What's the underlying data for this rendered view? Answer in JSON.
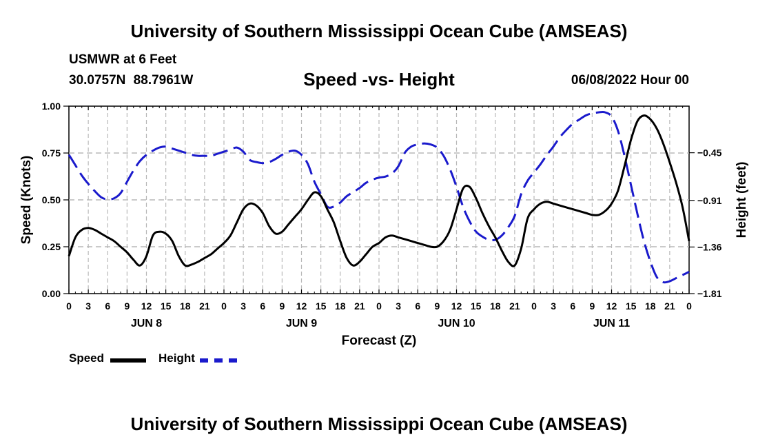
{
  "header": {
    "title": "University of Southern Mississippi Ocean Cube (AMSEAS)",
    "station": "USMWR at 6 Feet",
    "coords": "30.0757N  88.7961W",
    "subtitle": "Speed -vs- Height",
    "date": "06/08/2022 Hour 00"
  },
  "legend": {
    "speed": "Speed",
    "height": "Height"
  },
  "footer": {
    "title": "University of Southern Mississippi Ocean Cube (AMSEAS)"
  },
  "chart_data": {
    "type": "line",
    "title": "Speed -vs- Height",
    "xlabel": "Forecast (Z)",
    "ylabel": "Speed (Knots)",
    "y2label": "Height (feet)",
    "xlim": [
      0,
      96
    ],
    "ylim": [
      0,
      1
    ],
    "y2lim": [
      -1.81,
      -0.0
    ],
    "grid": true,
    "x_tick_labels": [
      "0",
      "3",
      "6",
      "9",
      "12",
      "15",
      "18",
      "21",
      "0",
      "3",
      "6",
      "9",
      "12",
      "15",
      "18",
      "21",
      "0",
      "3",
      "6",
      "9",
      "12",
      "15",
      "18",
      "21",
      "0",
      "3",
      "6",
      "9",
      "12",
      "15",
      "18",
      "21",
      "0"
    ],
    "day_labels": [
      "JUN 8",
      "JUN 9",
      "JUN 10",
      "JUN 11"
    ],
    "y_ticks": [
      0.0,
      0.25,
      0.5,
      0.75,
      1.0
    ],
    "y_tick_labels": [
      "0.00",
      "0.25",
      "0.50",
      "0.75",
      "1.00"
    ],
    "y2_ticks": [
      -1.81,
      -1.36,
      -0.91,
      -0.45
    ],
    "y2_tick_labels": [
      "−1.81",
      "−1.36",
      "−0.91",
      "−0.45"
    ],
    "series": [
      {
        "name": "Speed",
        "axis": "left",
        "color": "#000000",
        "dashed": false,
        "x": [
          0,
          1,
          2,
          3,
          4,
          5,
          6,
          7,
          8,
          9,
          10,
          11,
          12,
          13,
          14,
          15,
          16,
          17,
          18,
          19,
          20,
          21,
          22,
          23,
          24,
          25,
          26,
          27,
          28,
          29,
          30,
          31,
          32,
          33,
          34,
          35,
          36,
          37,
          38,
          39,
          40,
          41,
          42,
          43,
          44,
          45,
          46,
          47,
          48,
          49,
          50,
          51,
          52,
          53,
          54,
          55,
          56,
          57,
          58,
          59,
          60,
          61,
          62,
          63,
          64,
          65,
          66,
          67,
          68,
          69,
          70,
          71,
          72,
          73,
          74,
          75,
          76,
          77,
          78,
          79,
          80,
          81,
          82,
          83,
          84,
          85,
          86,
          87,
          88,
          89,
          90,
          91,
          92,
          93,
          94,
          95,
          96
        ],
        "values": [
          0.2,
          0.3,
          0.34,
          0.35,
          0.34,
          0.32,
          0.3,
          0.28,
          0.25,
          0.22,
          0.18,
          0.15,
          0.2,
          0.31,
          0.33,
          0.32,
          0.28,
          0.2,
          0.15,
          0.155,
          0.17,
          0.19,
          0.21,
          0.24,
          0.27,
          0.31,
          0.38,
          0.45,
          0.48,
          0.47,
          0.43,
          0.36,
          0.32,
          0.33,
          0.37,
          0.41,
          0.45,
          0.5,
          0.54,
          0.52,
          0.45,
          0.38,
          0.28,
          0.19,
          0.15,
          0.17,
          0.21,
          0.25,
          0.27,
          0.3,
          0.31,
          0.3,
          0.29,
          0.28,
          0.27,
          0.26,
          0.25,
          0.25,
          0.28,
          0.34,
          0.45,
          0.56,
          0.57,
          0.51,
          0.43,
          0.36,
          0.3,
          0.23,
          0.17,
          0.15,
          0.24,
          0.4,
          0.45,
          0.48,
          0.49,
          0.48,
          0.47,
          0.46,
          0.45,
          0.44,
          0.43,
          0.42,
          0.42,
          0.44,
          0.48,
          0.55,
          0.68,
          0.82,
          0.92,
          0.95,
          0.93,
          0.88,
          0.8,
          0.7,
          0.59,
          0.46,
          0.28
        ]
      },
      {
        "name": "Height",
        "axis": "right",
        "color": "#1a1acc",
        "dashed": true,
        "x": [
          0,
          1,
          2,
          3,
          4,
          5,
          6,
          7,
          8,
          9,
          10,
          11,
          12,
          13,
          14,
          15,
          16,
          17,
          18,
          19,
          20,
          21,
          22,
          23,
          24,
          25,
          26,
          27,
          28,
          29,
          30,
          31,
          32,
          33,
          34,
          35,
          36,
          37,
          38,
          39,
          40,
          41,
          42,
          43,
          44,
          45,
          46,
          47,
          48,
          49,
          50,
          51,
          52,
          53,
          54,
          55,
          56,
          57,
          58,
          59,
          60,
          61,
          62,
          63,
          64,
          65,
          66,
          67,
          68,
          69,
          70,
          71,
          72,
          73,
          74,
          75,
          76,
          77,
          78,
          79,
          80,
          81,
          82,
          83,
          84,
          85,
          86,
          87,
          88,
          89,
          90,
          91,
          92,
          93,
          94,
          95,
          96
        ],
        "values": [
          -0.47,
          -0.57,
          -0.67,
          -0.75,
          -0.82,
          -0.88,
          -0.9,
          -0.89,
          -0.84,
          -0.73,
          -0.62,
          -0.53,
          -0.47,
          -0.43,
          -0.4,
          -0.39,
          -0.41,
          -0.43,
          -0.45,
          -0.47,
          -0.48,
          -0.48,
          -0.48,
          -0.46,
          -0.44,
          -0.42,
          -0.4,
          -0.44,
          -0.52,
          -0.54,
          -0.55,
          -0.54,
          -0.51,
          -0.47,
          -0.44,
          -0.43,
          -0.47,
          -0.56,
          -0.73,
          -0.85,
          -0.97,
          -0.97,
          -0.93,
          -0.87,
          -0.83,
          -0.79,
          -0.74,
          -0.71,
          -0.69,
          -0.68,
          -0.65,
          -0.58,
          -0.45,
          -0.39,
          -0.37,
          -0.36,
          -0.37,
          -0.4,
          -0.48,
          -0.61,
          -0.78,
          -0.97,
          -1.11,
          -1.21,
          -1.26,
          -1.29,
          -1.29,
          -1.25,
          -1.17,
          -1.06,
          -0.85,
          -0.72,
          -0.64,
          -0.56,
          -0.47,
          -0.39,
          -0.3,
          -0.23,
          -0.17,
          -0.13,
          -0.09,
          -0.07,
          -0.06,
          -0.06,
          -0.1,
          -0.24,
          -0.48,
          -0.76,
          -1.04,
          -1.3,
          -1.5,
          -1.65,
          -1.7,
          -1.69,
          -1.66,
          -1.63,
          -1.6
        ]
      }
    ]
  }
}
